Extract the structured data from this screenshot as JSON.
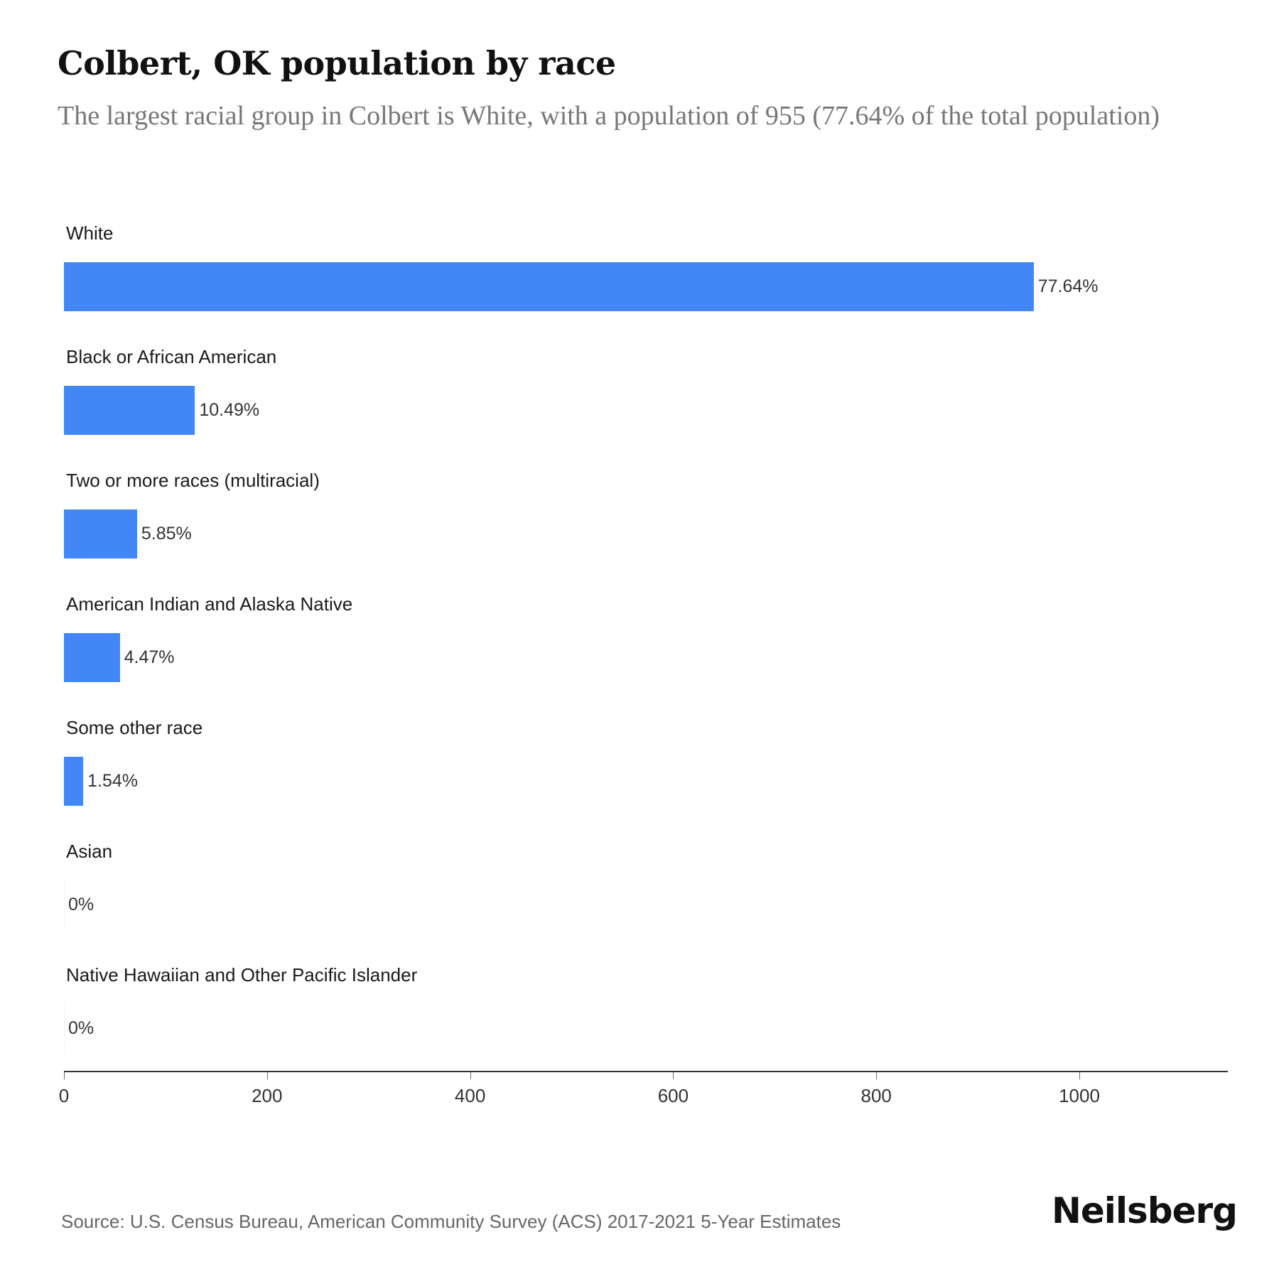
{
  "header": {
    "title": "Colbert, OK population by race",
    "subtitle": "The largest racial group in Colbert is White, with a population of 955 (77.64% of the total population)"
  },
  "chart_data": {
    "type": "bar",
    "orientation": "horizontal",
    "title": "Colbert, OK population by race",
    "subtitle": "The largest racial group in Colbert is White, with a population of 955 (77.64% of the total population)",
    "xlabel": "",
    "ylabel": "",
    "categories": [
      "White",
      "Black or African American",
      "Two or more races (multiracial)",
      "American Indian and Alaska Native",
      "Some other race",
      "Asian",
      "Native Hawaiian and Other Pacific Islander"
    ],
    "values": [
      955,
      129,
      72,
      55,
      19,
      0,
      0
    ],
    "percent_labels": [
      "77.64%",
      "10.49%",
      "5.85%",
      "4.47%",
      "1.54%",
      "0%",
      "0%"
    ],
    "xlim": [
      0,
      1145
    ],
    "xticks": [
      0,
      200,
      400,
      600,
      800,
      1000
    ],
    "grid": false,
    "bar_color": "#4287f5",
    "legend": null
  },
  "rows": [
    {
      "label": "White",
      "value": 955,
      "pct": "77.64%"
    },
    {
      "label": "Black or African American",
      "value": 129,
      "pct": "10.49%"
    },
    {
      "label": "Two or more races (multiracial)",
      "value": 72,
      "pct": "5.85%"
    },
    {
      "label": "American Indian and Alaska Native",
      "value": 55,
      "pct": "4.47%"
    },
    {
      "label": "Some other race",
      "value": 19,
      "pct": "1.54%"
    },
    {
      "label": "Asian",
      "value": 0,
      "pct": "0%"
    },
    {
      "label": "Native Hawaiian and Other Pacific Islander",
      "value": 0,
      "pct": "0%"
    }
  ],
  "axis": {
    "ticks": [
      "0",
      "200",
      "400",
      "600",
      "800",
      "1000"
    ]
  },
  "footer": {
    "source": "Source: U.S. Census Bureau, American Community Survey (ACS) 2017-2021 5-Year Estimates",
    "brand": "Neilsberg"
  },
  "colors": {
    "bar": "#4287f5",
    "title": "#111111",
    "subtitle": "#777777"
  }
}
